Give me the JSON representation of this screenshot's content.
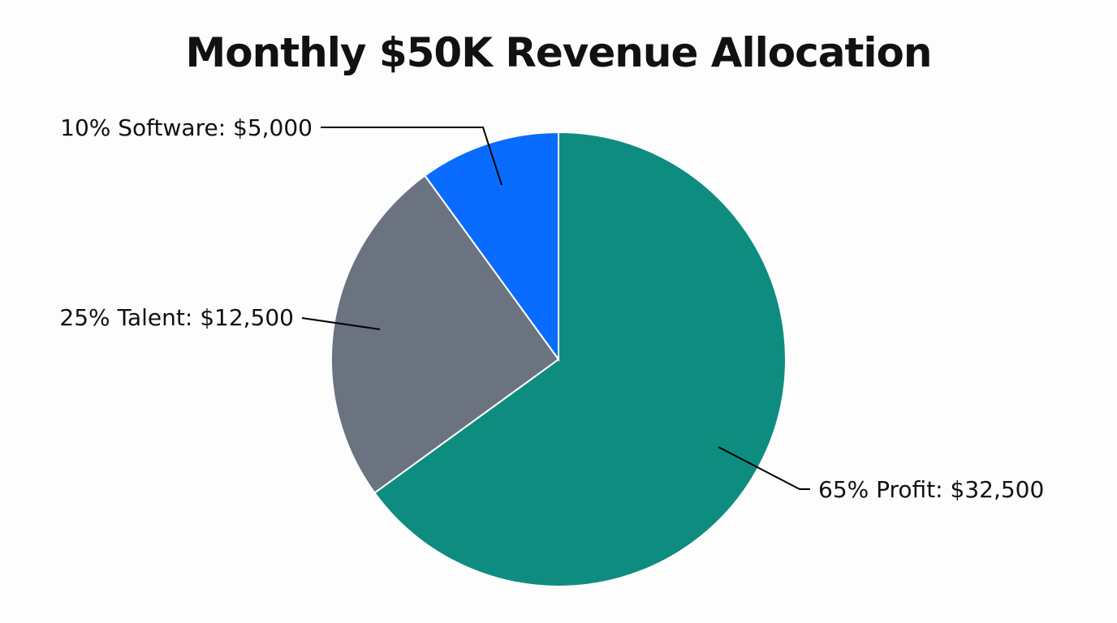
{
  "chart_data": {
    "type": "pie",
    "title": "Monthly $50K Revenue Allocation",
    "start_angle": "top",
    "direction": "clockwise",
    "slices": [
      {
        "name": "Profit",
        "percent": 65,
        "value": 32500,
        "label": "65% Profit: $32,500",
        "color": "#0f8c80"
      },
      {
        "name": "Talent",
        "percent": 25,
        "value": 12500,
        "label": "25% Talent: $12,500",
        "color": "#6b7280"
      },
      {
        "name": "Software",
        "percent": 10,
        "value": 5000,
        "label": "10% Software: $5,000",
        "color": "#0a6cff"
      }
    ]
  }
}
